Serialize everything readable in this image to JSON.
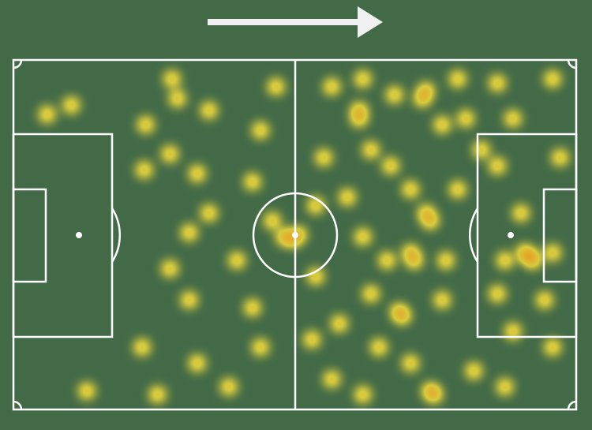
{
  "chart_data": {
    "type": "heatmap",
    "xlim": [
      0,
      105
    ],
    "ylim": [
      0,
      68
    ],
    "colormap": [
      "#f2dc3c",
      "#f0a424",
      "#e6221c"
    ],
    "x": [
      6.3,
      10.8,
      24.4,
      24.7,
      29.6,
      30.6,
      29.2,
      36.5,
      34.3,
      32.8,
      36.5,
      29.2,
      32.8,
      24,
      34.3,
      13.7,
      26.9,
      40.2,
      46.1,
      49,
      44.6,
      41.7,
      44.6,
      46.1,
      50.5,
      52,
      53.2,
      48.3,
      59.4,
      64.5,
      65.2,
      71.1,
      76.3,
      77,
      82.9,
      90.3,
      100.6,
      84.4,
      57.9,
      66.7,
      70.4,
      74.1,
      77,
      77.8,
      62.3,
      65.2,
      69.7,
      74.1,
      74.8,
      66.7,
      71.9,
      72.6,
      80,
      60.8,
      68.2,
      74.1,
      77.8,
      78.5,
      85.9,
      91.7,
      59.4,
      65.2,
      90.3,
      94.7,
      95.4,
      96.2,
      96.9,
      91.7,
      100.6,
      90.3,
      99.1,
      93.2,
      100.6,
      82.9,
      80.7,
      56.4,
      55.7,
      56.4,
      64.5,
      80,
      87.3,
      102,
      93.2
    ],
    "y": [
      10.6,
      8.8,
      21.4,
      12.6,
      3.7,
      7.5,
      18.3,
      9.8,
      22.1,
      33.6,
      29.8,
      40.6,
      46.7,
      55.9,
      59,
      64.4,
      65.1,
      63.6,
      13.7,
      5.2,
      23.7,
      39,
      48.2,
      55.9,
      34.4,
      34.9,
      34,
      31.3,
      5.2,
      11.4,
      3.7,
      6.8,
      7.5,
      6,
      3.7,
      4.5,
      3.7,
      11.4,
      19,
      17.5,
      20.6,
      25.2,
      29.8,
      31.3,
      26.7,
      34.4,
      39,
      37.5,
      39,
      45.5,
      49,
      49.8,
      46.7,
      51.3,
      55.9,
      59,
      64.4,
      65.1,
      60.5,
      63.6,
      62.1,
      65.1,
      20.6,
      29.8,
      37.5,
      38.2,
      39,
      39,
      37.5,
      45.5,
      46.7,
      52.8,
      55.9,
      25.2,
      39,
      42.1,
      54.4,
      28.3,
      9.8,
      12.6,
      17.5,
      19,
      11.4
    ]
  }
}
